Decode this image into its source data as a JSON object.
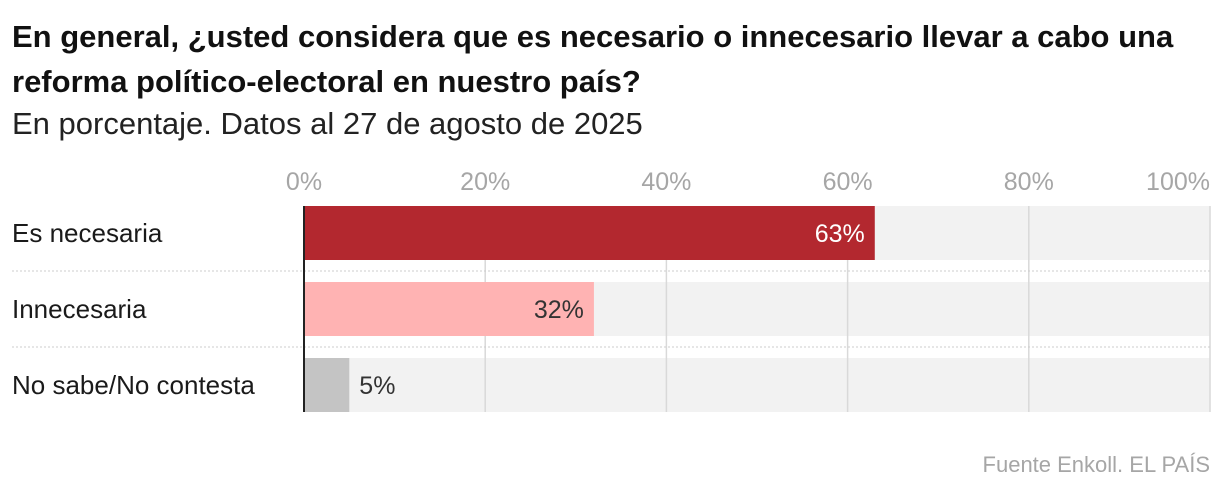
{
  "title": "En general, ¿usted considera que es necesario o innecesario llevar a cabo una reforma político-electoral en nuestro país?",
  "subtitle": "En porcentaje. Datos al 27 de agosto de 2025",
  "source": "Fuente Enkoll. EL PAÍS",
  "colors": {
    "necesaria": "#b3282f",
    "innecesaria": "#ffb3b3",
    "no_sabe": "#c4c4c4",
    "track": "#f2f2f2"
  },
  "chart_data": {
    "type": "bar",
    "orientation": "horizontal",
    "categories": [
      "Es necesaria",
      "Innecesaria",
      "No sabe/No contesta"
    ],
    "values": [
      63,
      32,
      5
    ],
    "value_labels": [
      "63%",
      "32%",
      "5%"
    ],
    "xlim": [
      0,
      100
    ],
    "x_ticks": [
      0,
      20,
      40,
      60,
      80,
      100
    ],
    "x_tick_labels": [
      "0%",
      "20%",
      "40%",
      "60%",
      "80%",
      "100%"
    ],
    "grid": true,
    "axis_position": "top"
  }
}
